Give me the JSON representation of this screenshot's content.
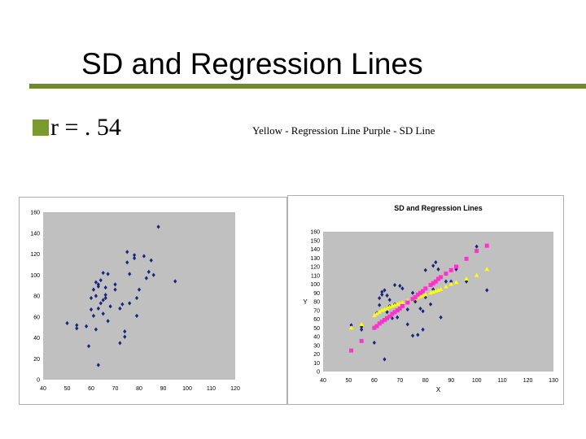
{
  "slide": {
    "title": "SD and Regression Lines",
    "bullet": "r = . 54",
    "caption": "Yellow - Regression Line   Purple - SD Line"
  },
  "colors": {
    "accent_rule": "#6e8a2a",
    "bullet_box": "#7a9a2e",
    "points": "#1a237e",
    "regression": "#ffff00",
    "sd": "#ff33cc",
    "plot_bg": "#c0c0c0"
  },
  "chart_data": [
    {
      "type": "scatter",
      "title": "",
      "xlabel": "",
      "ylabel": "",
      "xlim": [
        40,
        120
      ],
      "ylim": [
        0,
        160
      ],
      "xticks": [
        40,
        50,
        60,
        70,
        80,
        90,
        100,
        110,
        120
      ],
      "yticks": [
        0,
        20,
        40,
        60,
        80,
        100,
        120,
        140,
        160
      ],
      "grid": false,
      "series": [
        {
          "points": [
            [
              50,
              54
            ],
            [
              54,
              52
            ],
            [
              54,
              49
            ],
            [
              58,
              51
            ],
            [
              59,
              32
            ],
            [
              60,
              67
            ],
            [
              60,
              78
            ],
            [
              61,
              61
            ],
            [
              61,
              86
            ],
            [
              62,
              93
            ],
            [
              62,
              80
            ],
            [
              62,
              48
            ],
            [
              63,
              14
            ],
            [
              63,
              68
            ],
            [
              63,
              91
            ],
            [
              63,
              89
            ],
            [
              64,
              95
            ],
            [
              64,
              73
            ],
            [
              65,
              76
            ],
            [
              65,
              102
            ],
            [
              65,
              63
            ],
            [
              66,
              78
            ],
            [
              66,
              88
            ],
            [
              66,
              81
            ],
            [
              67,
              56
            ],
            [
              67,
              101
            ],
            [
              68,
              70
            ],
            [
              70,
              86
            ],
            [
              70,
              91
            ],
            [
              72,
              35
            ],
            [
              72,
              68
            ],
            [
              73,
              72
            ],
            [
              74,
              46
            ],
            [
              74,
              41
            ],
            [
              75,
              112
            ],
            [
              75,
              122
            ],
            [
              76,
              73
            ],
            [
              76,
              101
            ],
            [
              78,
              119
            ],
            [
              78,
              116
            ],
            [
              79,
              78
            ],
            [
              79,
              61
            ],
            [
              80,
              86
            ],
            [
              82,
              118
            ],
            [
              83,
              97
            ],
            [
              84,
              103
            ],
            [
              85,
              114
            ],
            [
              86,
              100
            ],
            [
              88,
              146
            ],
            [
              95,
              94
            ]
          ]
        }
      ]
    },
    {
      "type": "scatter",
      "title": "SD and Regression Lines",
      "xlabel": "X",
      "ylabel": "Y",
      "xlim": [
        40,
        130
      ],
      "ylim": [
        0,
        160
      ],
      "xticks": [
        40,
        50,
        60,
        70,
        80,
        90,
        100,
        110,
        120,
        130
      ],
      "yticks": [
        0,
        10,
        20,
        30,
        40,
        50,
        60,
        70,
        80,
        90,
        100,
        110,
        120,
        130,
        140,
        150,
        160
      ],
      "grid": false,
      "series": [
        {
          "marker": "diamond",
          "points": [
            [
              51,
              53
            ],
            [
              55,
              51
            ],
            [
              55,
              48
            ],
            [
              60,
              33
            ],
            [
              61,
              67
            ],
            [
              62,
              84
            ],
            [
              62,
              76
            ],
            [
              63,
              91
            ],
            [
              63,
              88
            ],
            [
              64,
              93
            ],
            [
              64,
              14
            ],
            [
              65,
              68
            ],
            [
              65,
              87
            ],
            [
              66,
              82
            ],
            [
              66,
              75
            ],
            [
              67,
              61
            ],
            [
              68,
              99
            ],
            [
              68,
              77
            ],
            [
              69,
              62
            ],
            [
              70,
              98
            ],
            [
              71,
              95
            ],
            [
              73,
              71
            ],
            [
              73,
              54
            ],
            [
              75,
              41
            ],
            [
              75,
              90
            ],
            [
              76,
              80
            ],
            [
              77,
              42
            ],
            [
              78,
              72
            ],
            [
              79,
              69
            ],
            [
              79,
              48
            ],
            [
              80,
              116
            ],
            [
              80,
              85
            ],
            [
              82,
              77
            ],
            [
              83,
              94
            ],
            [
              83,
              121
            ],
            [
              84,
              125
            ],
            [
              85,
              117
            ],
            [
              86,
              62
            ],
            [
              88,
              103
            ],
            [
              90,
              103
            ],
            [
              92,
              117
            ],
            [
              96,
              103
            ],
            [
              100,
              143
            ],
            [
              104,
              93
            ]
          ]
        },
        {
          "name": "Regression Line",
          "marker": "triangle",
          "points": [
            [
              51,
              50
            ],
            [
              55,
              54
            ],
            [
              60,
              64
            ],
            [
              61,
              66
            ],
            [
              62,
              68
            ],
            [
              63,
              70
            ],
            [
              64,
              71
            ],
            [
              65,
              72
            ],
            [
              66,
              74
            ],
            [
              67,
              75
            ],
            [
              68,
              76
            ],
            [
              69,
              77
            ],
            [
              70,
              78
            ],
            [
              71,
              79
            ],
            [
              73,
              81
            ],
            [
              75,
              83
            ],
            [
              76,
              84
            ],
            [
              77,
              85
            ],
            [
              78,
              86
            ],
            [
              79,
              87
            ],
            [
              80,
              88
            ],
            [
              82,
              90
            ],
            [
              83,
              91
            ],
            [
              84,
              92
            ],
            [
              85,
              93
            ],
            [
              86,
              94
            ],
            [
              88,
              97
            ],
            [
              90,
              100
            ],
            [
              92,
              102
            ],
            [
              96,
              106
            ],
            [
              100,
              110
            ],
            [
              104,
              117
            ]
          ]
        },
        {
          "name": "SD Line",
          "marker": "square",
          "points": [
            [
              51,
              24
            ],
            [
              55,
              35
            ],
            [
              60,
              50
            ],
            [
              61,
              52
            ],
            [
              62,
              55
            ],
            [
              63,
              57
            ],
            [
              64,
              59
            ],
            [
              65,
              61
            ],
            [
              66,
              63
            ],
            [
              67,
              66
            ],
            [
              68,
              68
            ],
            [
              69,
              70
            ],
            [
              70,
              72
            ],
            [
              71,
              75
            ],
            [
              73,
              79
            ],
            [
              75,
              83
            ],
            [
              76,
              85
            ],
            [
              77,
              88
            ],
            [
              78,
              90
            ],
            [
              79,
              92
            ],
            [
              80,
              95
            ],
            [
              82,
              99
            ],
            [
              83,
              101
            ],
            [
              84,
              103
            ],
            [
              85,
              106
            ],
            [
              86,
              108
            ],
            [
              88,
              112
            ],
            [
              90,
              116
            ],
            [
              92,
              120
            ],
            [
              96,
              129
            ],
            [
              100,
              138
            ],
            [
              104,
              144
            ]
          ]
        }
      ]
    }
  ]
}
